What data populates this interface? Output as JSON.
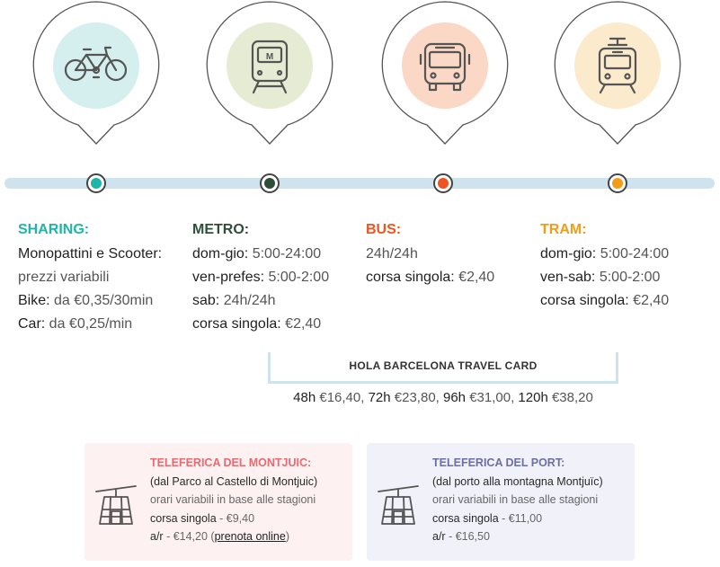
{
  "colors": {
    "sharing": "#1fb5a8",
    "metro": "#2f4e3a",
    "bus": "#f0541e",
    "tram": "#f39d17",
    "teleferica_montjuic": "#e86a72",
    "teleferica_port": "#6d6fa0"
  },
  "icons": [
    "bike-icon",
    "metro-icon",
    "bus-icon",
    "tram-icon",
    "cable-car-icon"
  ],
  "metro_sign": "M",
  "sharing": {
    "title": "SHARING:",
    "l1": "Monopattini e Scooter:",
    "l2": "prezzi variabili",
    "l3k": "Bike:",
    "l3v": " da €0,35/30min",
    "l4k": "Car:",
    "l4v": " da €0,25/min"
  },
  "metro": {
    "title": "METRO:",
    "l1k": "dom-gio:",
    "l1v": " 5:00-24:00",
    "l2k": "ven-prefes:",
    "l2v": " 5:00-2:00",
    "l3k": "sab:",
    "l3v": " 24h/24h",
    "l4k": "corsa singola:",
    "l4v": " €2,40"
  },
  "bus": {
    "title": "BUS:",
    "l1": "24h/24h",
    "l2k": "corsa singola:",
    "l2v": " €2,40"
  },
  "tram": {
    "title": "TRAM:",
    "l1k": "dom-gio:",
    "l1v": " 5:00-24:00",
    "l2k": "ven-sab:",
    "l2v": " 5:00-2:00",
    "l3k": "corsa singola:",
    "l3v": " €2,40"
  },
  "travel_card": {
    "title": "HOLA BARCELONA TRAVEL CARD",
    "p1k": "48h",
    "p1v": " €16,40, ",
    "p2k": "72h",
    "p2v": " €23,80, ",
    "p3k": "96h",
    "p3v": " €31,00, ",
    "p4k": "120h",
    "p4v": " €38,20"
  },
  "montjuic": {
    "title": "TELEFERICA DEL MONTJUIC:",
    "l1": "(dal Parco al Castello di Montjuic)",
    "l2": "orari variabili in base alle stagioni",
    "l3k": "corsa singola",
    "l3v": " - €9,40",
    "l4k": "a/r",
    "l4v": " - €14,20 (",
    "link": "prenota online",
    "l4end": ")"
  },
  "port": {
    "title": "TELEFERICA DEL PORT:",
    "l1": "(dal porto alla montagna Montjuïc)",
    "l2": "orari variabili in base alle stagioni",
    "l3k": "corsa singola",
    "l3v": " - €11,00",
    "l4k": "a/r",
    "l4v": " - €16,50"
  }
}
